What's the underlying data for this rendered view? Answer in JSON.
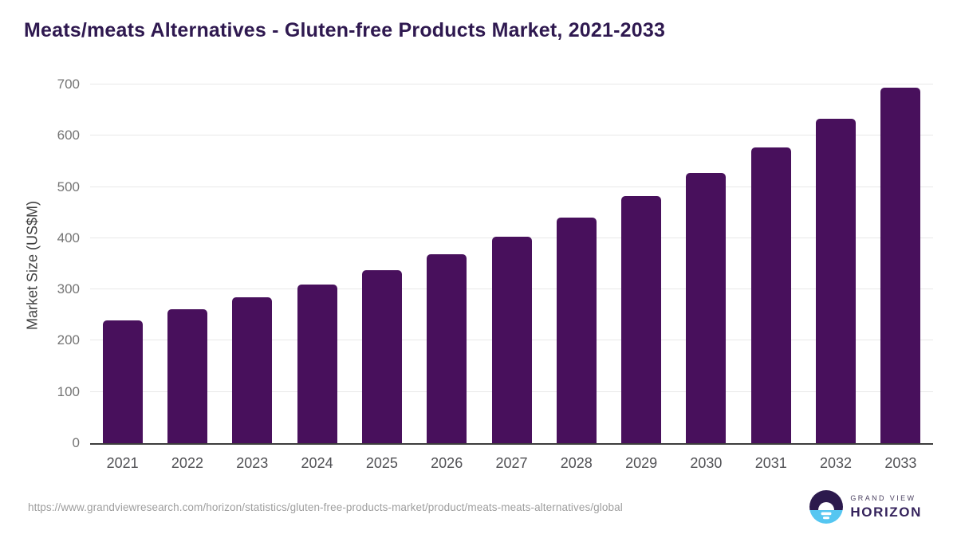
{
  "title": "Meats/meats Alternatives - Gluten-free Products Market, 2021-2033",
  "chart_data": {
    "type": "bar",
    "title": "Meats/meats Alternatives - Gluten-free Products Market, 2021-2033",
    "categories": [
      "2021",
      "2022",
      "2023",
      "2024",
      "2025",
      "2026",
      "2027",
      "2028",
      "2029",
      "2030",
      "2031",
      "2032",
      "2033"
    ],
    "values": [
      239,
      261,
      284,
      310,
      338,
      368,
      403,
      440,
      482,
      527,
      577,
      633,
      694
    ],
    "xlabel": "",
    "ylabel": "Market Size (US$M)",
    "ylim": [
      0,
      700
    ],
    "ytick_step": 100,
    "yticks": [
      "0",
      "100",
      "200",
      "300",
      "400",
      "500",
      "600",
      "700"
    ],
    "grid": true,
    "legend": "none",
    "bar_color": "#48105c"
  },
  "footer": {
    "source_url": "https://www.grandviewresearch.com/horizon/statistics/gluten-free-products-market/product/meats-meats-alternatives/global",
    "logo": {
      "brand_top": "GRAND VIEW",
      "brand_bottom": "HORIZON"
    }
  },
  "colors": {
    "bar": "#48105c",
    "title_text": "#2f1950",
    "axis_line": "#3d3d3d",
    "gridline": "#e8e8e8",
    "y_tick_text": "#757575",
    "x_tick_text": "#515155",
    "url_text": "#9e9e9e",
    "logo_purple": "#2c1a4d",
    "logo_blue": "#55c6f1"
  }
}
